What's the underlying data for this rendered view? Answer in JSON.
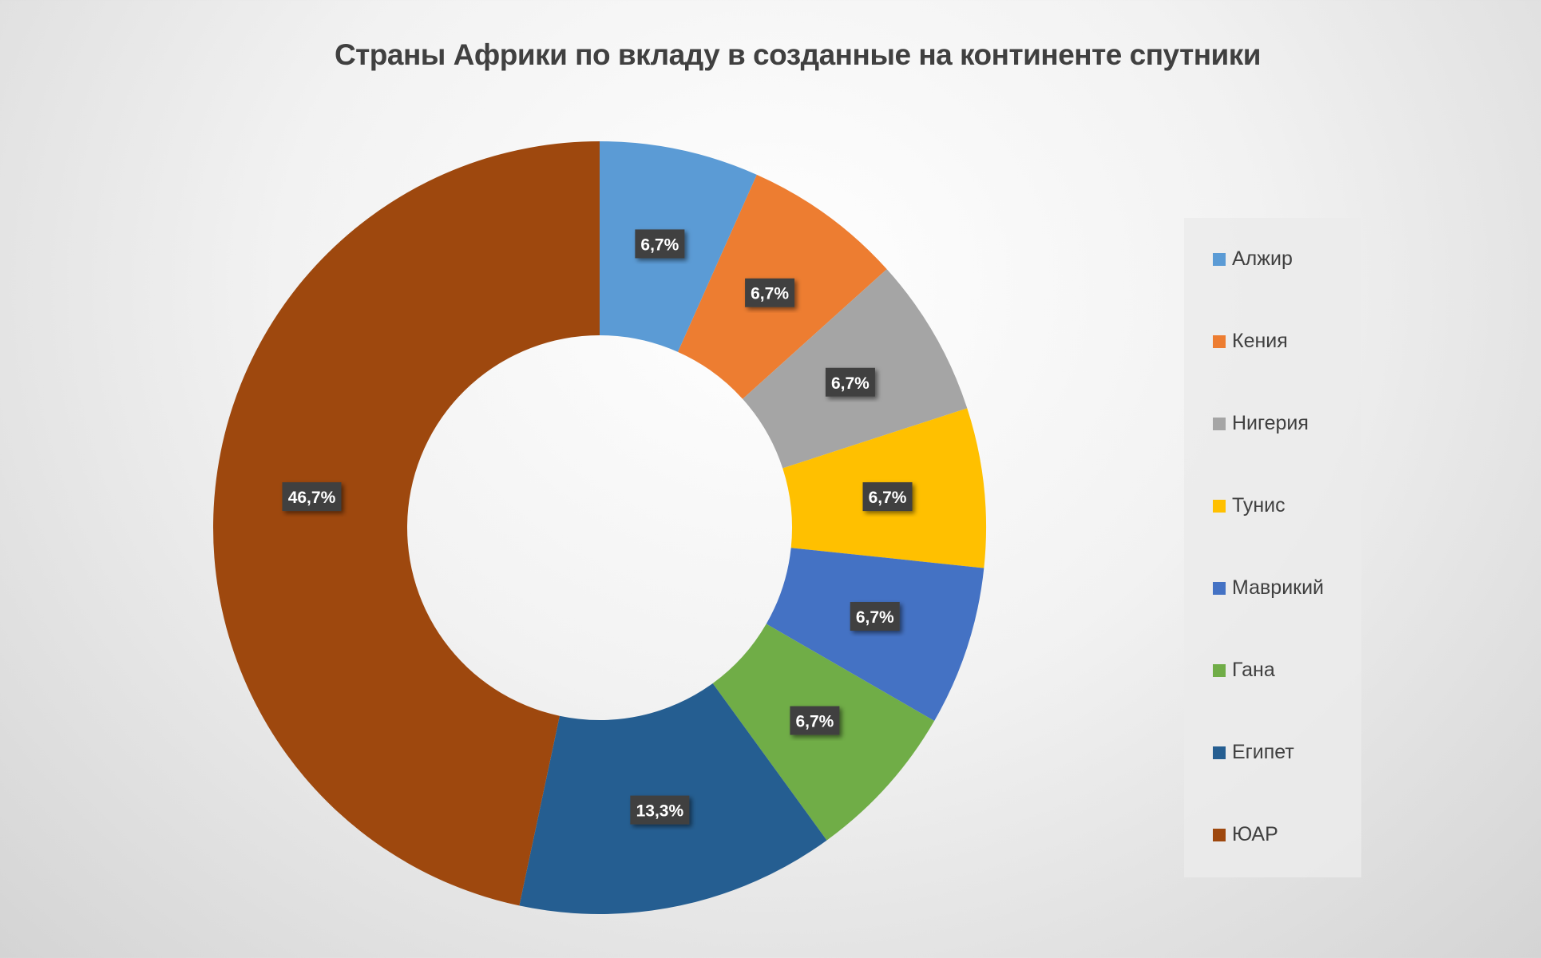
{
  "chart_data": {
    "type": "pie",
    "subtype": "donut",
    "title": "Страны Африки по вкладу в созданные на континенте спутники",
    "categories": [
      "Алжир",
      "Кения",
      "Нигерия",
      "Тунис",
      "Маврикий",
      "Гана",
      "Египет",
      "ЮАР"
    ],
    "values": [
      1,
      1,
      1,
      1,
      1,
      1,
      2,
      7
    ],
    "data_labels": [
      "6,7%",
      "6,7%",
      "6,7%",
      "6,7%",
      "6,7%",
      "6,7%",
      "13,3%",
      "46,7%"
    ],
    "colors": [
      "#5b9bd5",
      "#ed7d31",
      "#a5a5a5",
      "#ffc000",
      "#4472c4",
      "#70ad47",
      "#255e91",
      "#9e480e"
    ],
    "legend_position": "right"
  }
}
